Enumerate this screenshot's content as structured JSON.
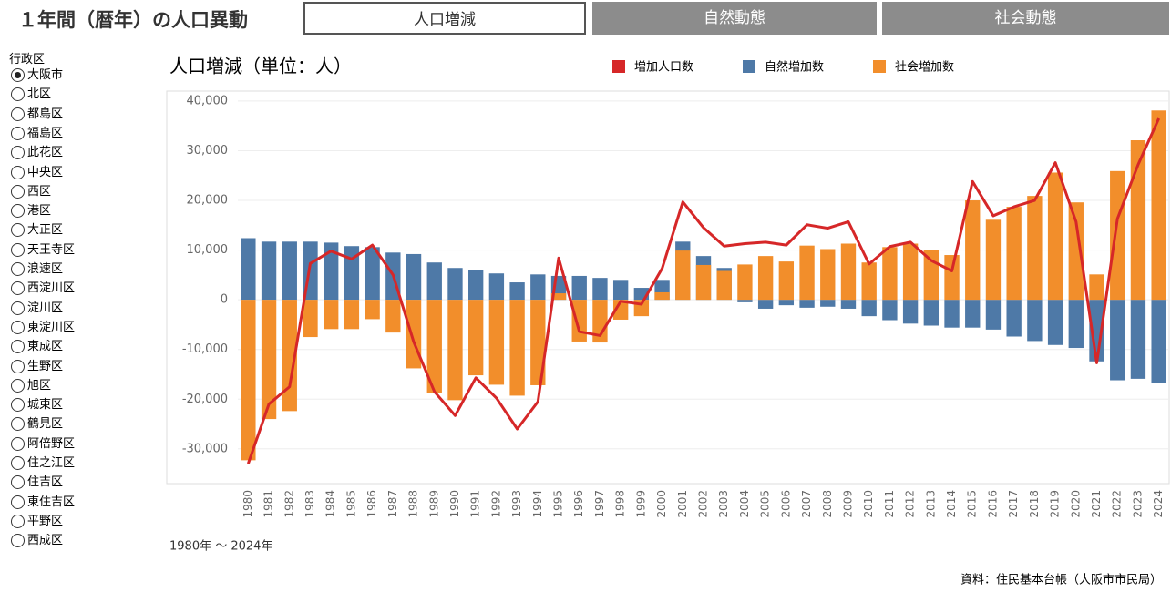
{
  "header": {
    "title": "１年間（暦年）の人口異動",
    "tabs": [
      "人口増減",
      "自然動態",
      "社会動態"
    ]
  },
  "sidebar": {
    "title": "行政区",
    "items": [
      "大阪市",
      "北区",
      "都島区",
      "福島区",
      "此花区",
      "中央区",
      "西区",
      "港区",
      "大正区",
      "天王寺区",
      "浪速区",
      "西淀川区",
      "淀川区",
      "東淀川区",
      "東成区",
      "生野区",
      "旭区",
      "城東区",
      "鶴見区",
      "阿倍野区",
      "住之江区",
      "住吉区",
      "東住吉区",
      "平野区",
      "西成区"
    ],
    "selected": 0
  },
  "chart_data": {
    "type": "bar-line",
    "title": "人口増減（単位：人）",
    "subtitle": "1980年 ～ 2024年",
    "categories": [
      "1980",
      "1981",
      "1982",
      "1983",
      "1984",
      "1985",
      "1986",
      "1987",
      "1988",
      "1989",
      "1990",
      "1991",
      "1992",
      "1993",
      "1994",
      "1995",
      "1996",
      "1997",
      "1998",
      "1999",
      "2000",
      "2001",
      "2002",
      "2003",
      "2004",
      "2005",
      "2006",
      "2007",
      "2008",
      "2009",
      "2010",
      "2011",
      "2012",
      "2013",
      "2014",
      "2015",
      "2016",
      "2017",
      "2018",
      "2019",
      "2020",
      "2021",
      "2022",
      "2023",
      "2024"
    ],
    "series": [
      {
        "name": "自然増加数",
        "type": "bar",
        "color": "#4e79a7",
        "values": [
          12400,
          11700,
          11700,
          11700,
          11500,
          10800,
          10600,
          9500,
          9200,
          7500,
          6400,
          5900,
          5300,
          3500,
          5100,
          4800,
          4800,
          4400,
          4000,
          2400,
          4000,
          11700,
          8800,
          6400,
          -500,
          -1800,
          -1100,
          -1600,
          -1400,
          -1800,
          -3300,
          -4100,
          -4800,
          -5200,
          -5600,
          -5600,
          -6000,
          -7400,
          -8300,
          -9100,
          -9700,
          -12400,
          -16200,
          -15900,
          -16700
        ]
      },
      {
        "name": "社会増加数",
        "type": "bar",
        "color": "#f28e2b",
        "values": [
          -32300,
          -24000,
          -22400,
          -7500,
          -5900,
          -5900,
          -3900,
          -6600,
          -13800,
          -18700,
          -20200,
          -15200,
          -17100,
          -19300,
          -17200,
          1300,
          -8400,
          -8600,
          -4000,
          -3300,
          1500,
          9900,
          7000,
          5800,
          7100,
          8800,
          7700,
          10900,
          10200,
          11300,
          7500,
          10600,
          11300,
          10000,
          9000,
          20000,
          16100,
          18700,
          20900,
          25600,
          19600,
          5100,
          25900,
          32100,
          38100
        ]
      },
      {
        "name": "増加人口数",
        "type": "line",
        "color": "#d62728",
        "values": [
          -33000,
          -21000,
          -17500,
          7300,
          9800,
          8200,
          11000,
          5000,
          -8500,
          -18500,
          -23300,
          -15700,
          -19800,
          -26000,
          -20500,
          8400,
          -6400,
          -7200,
          -300,
          -900,
          6300,
          19700,
          14500,
          10800,
          11300,
          11600,
          11000,
          15100,
          14400,
          15700,
          7200,
          10700,
          11600,
          7900,
          5800,
          23800,
          16900,
          18700,
          20000,
          27600,
          15700,
          -12700,
          16300,
          27200,
          36500
        ]
      }
    ],
    "legend_order": [
      2,
      0,
      1
    ],
    "ylim": [
      -37000,
      42000
    ],
    "yticks": [
      {
        "value": -30000,
        "label": "-30,000"
      },
      {
        "value": -20000,
        "label": "-20,000"
      },
      {
        "value": -10000,
        "label": "-10,000"
      },
      0,
      {
        "value": 10000,
        "label": "10,000"
      },
      {
        "value": 20000,
        "label": "20,000"
      },
      {
        "value": 30000,
        "label": "30,000"
      },
      {
        "value": 40000,
        "label": "40,000"
      }
    ],
    "grid": true
  },
  "footer": {
    "source": "資料：住民基本台帳（大阪市市民局）"
  }
}
